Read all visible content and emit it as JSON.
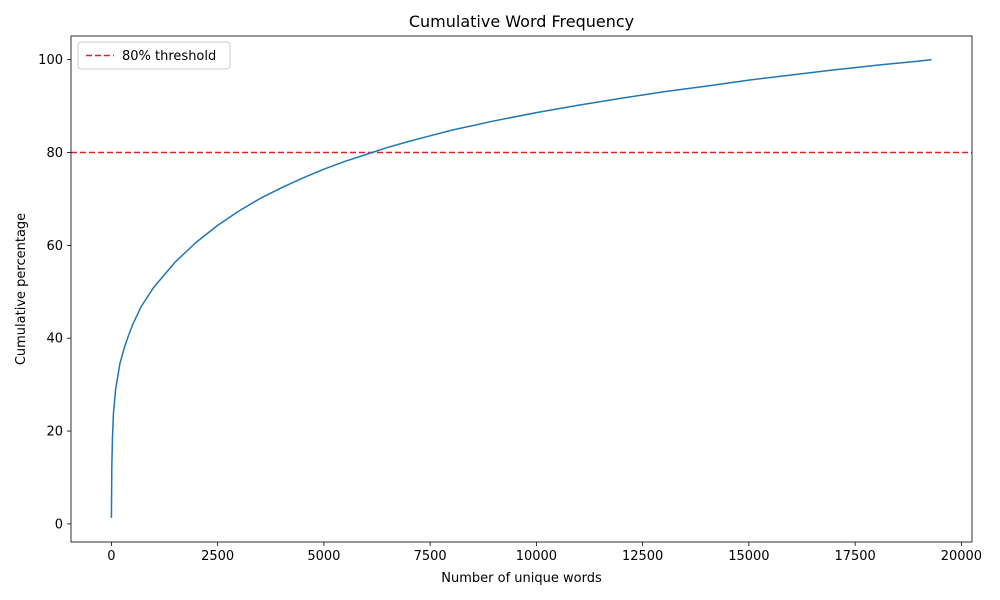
{
  "chart_data": {
    "type": "line",
    "title": "Cumulative Word Frequency",
    "xlabel": "Number of unique words",
    "ylabel": "Cumulative percentage",
    "xlim": [
      -950,
      20250
    ],
    "ylim": [
      -3.9,
      105.1
    ],
    "xticks": [
      0,
      2500,
      5000,
      7500,
      10000,
      12500,
      15000,
      17500,
      20000
    ],
    "yticks": [
      0,
      20,
      40,
      60,
      80,
      100
    ],
    "grid": false,
    "legend": {
      "placement": "upper-left",
      "entries": [
        "80% threshold"
      ]
    },
    "series": [
      {
        "color": "#1f77b4",
        "x": [
          1,
          10,
          25,
          50,
          100,
          200,
          300,
          400,
          500,
          700,
          1000,
          1500,
          2000,
          2500,
          3000,
          3500,
          4000,
          4500,
          5000,
          5500,
          6000,
          6500,
          7000,
          7500,
          8000,
          8500,
          9000,
          10000,
          11000,
          12000,
          12500,
          13000,
          14000,
          15000,
          16000,
          17000,
          17500,
          18000,
          19000,
          19300
        ],
        "y": [
          1.3,
          12,
          18.5,
          24,
          29,
          34.5,
          37.8,
          40.5,
          42.9,
          46.8,
          51,
          56.4,
          60.7,
          64.3,
          67.4,
          70.1,
          72.4,
          74.5,
          76.4,
          78.1,
          79.6,
          81.1,
          82.4,
          83.6,
          84.8,
          85.8,
          86.8,
          88.6,
          90.2,
          91.7,
          92.4,
          93.1,
          94.3,
          95.6,
          96.7,
          97.8,
          98.3,
          98.8,
          99.7,
          100
        ]
      }
    ],
    "reference_lines": [
      {
        "orientation": "horizontal",
        "y": 80,
        "label": "80% threshold",
        "color": "#d62728",
        "style": "dashed"
      }
    ]
  }
}
